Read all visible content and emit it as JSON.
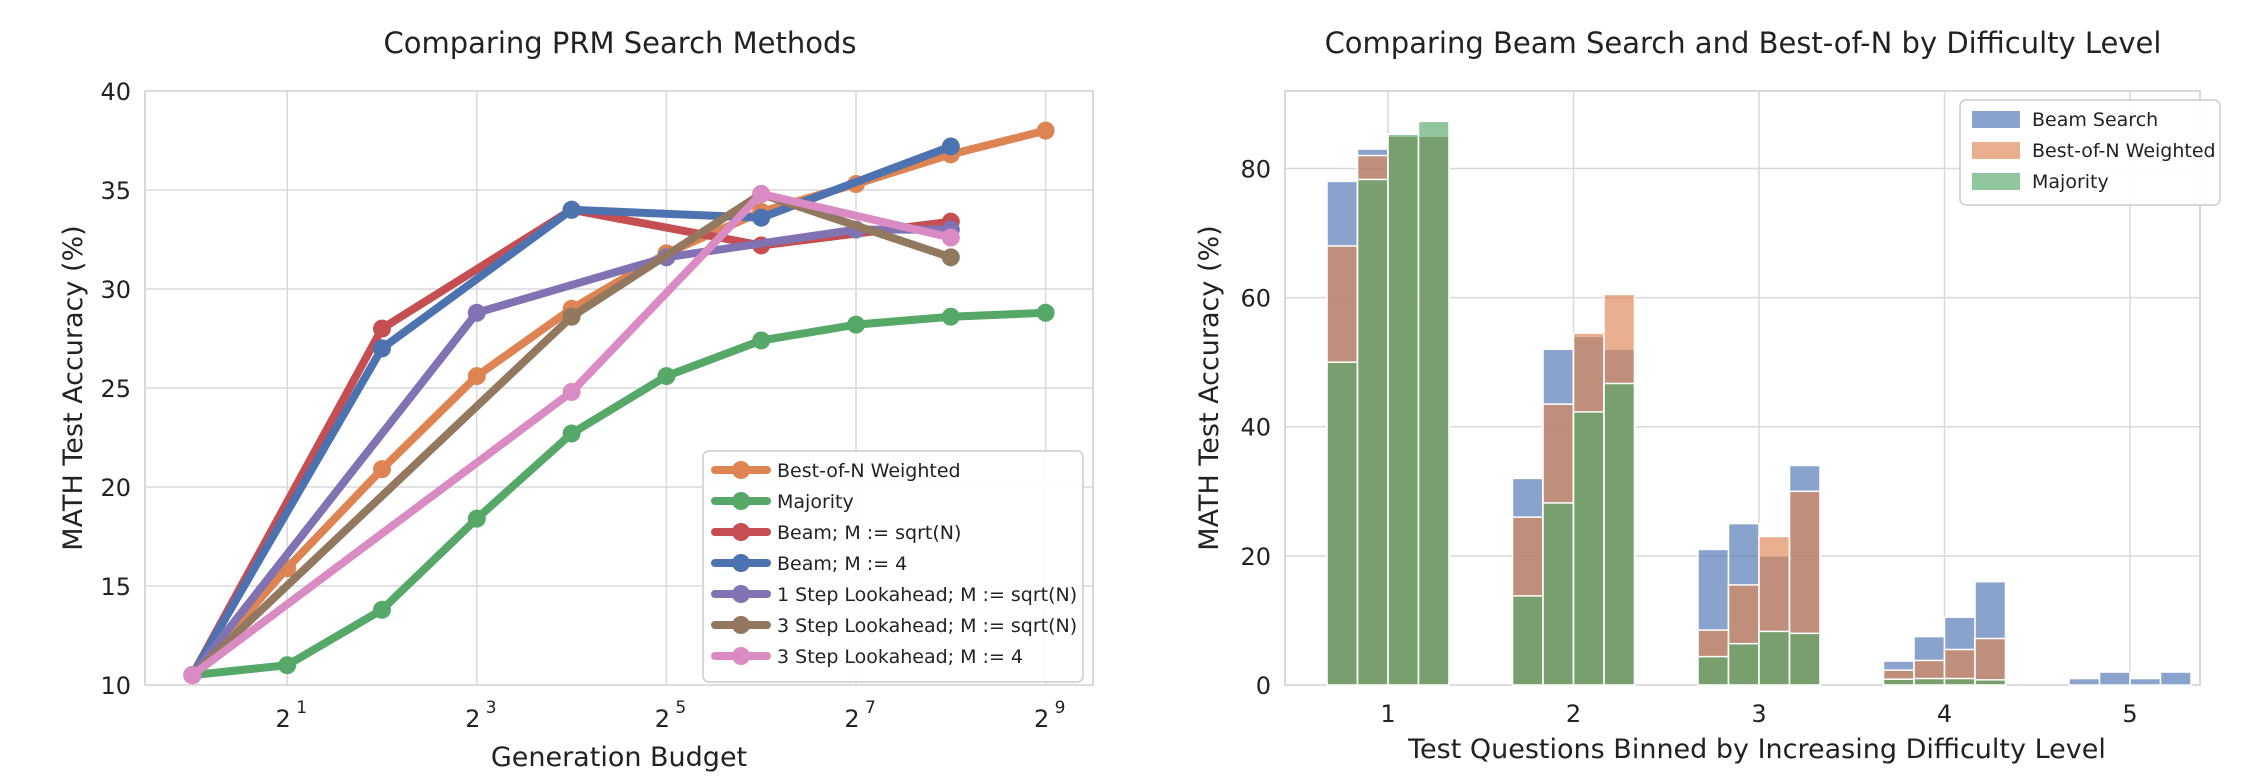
{
  "chart_data": [
    {
      "type": "line",
      "title": "Comparing PRM Search Methods",
      "xlabel": "Generation Budget",
      "ylabel": "MATH Test Accuracy (%)",
      "xscale": "log2",
      "xlim_log2": [
        -0.5,
        9.5
      ],
      "ylim": [
        10,
        40
      ],
      "yticks": [
        10,
        15,
        20,
        25,
        30,
        35,
        40
      ],
      "xticks": [
        {
          "exp": 1,
          "base": "2",
          "sup": "1"
        },
        {
          "exp": 3,
          "base": "2",
          "sup": "3"
        },
        {
          "exp": 5,
          "base": "2",
          "sup": "5"
        },
        {
          "exp": 7,
          "base": "2",
          "sup": "7"
        },
        {
          "exp": 9,
          "base": "2",
          "sup": "9"
        }
      ],
      "legend_position": "bottom-right",
      "series": [
        {
          "name": "Best-of-N Weighted",
          "color": "#dd8452",
          "x_log2": [
            0,
            1,
            2,
            3,
            4,
            5,
            6,
            7,
            8,
            9
          ],
          "values": [
            10.5,
            15.9,
            20.9,
            25.6,
            29.0,
            31.8,
            33.9,
            35.3,
            36.8,
            38.0
          ]
        },
        {
          "name": "Majority",
          "color": "#55a868",
          "x_log2": [
            0,
            1,
            2,
            3,
            4,
            5,
            6,
            7,
            8,
            9
          ],
          "values": [
            10.5,
            11.0,
            13.8,
            18.4,
            22.7,
            25.6,
            27.4,
            28.2,
            28.6,
            28.8
          ]
        },
        {
          "name": "Beam; M := sqrt(N)",
          "color": "#c44e52",
          "x_log2": [
            0,
            2,
            4,
            6,
            8
          ],
          "values": [
            10.5,
            28.0,
            34.0,
            32.2,
            33.4
          ]
        },
        {
          "name": "Beam; M := 4",
          "color": "#4c72b0",
          "x_log2": [
            0,
            2,
            4,
            6,
            8
          ],
          "values": [
            10.5,
            27.0,
            34.0,
            33.6,
            37.2
          ]
        },
        {
          "name": "1 Step Lookahead; M := sqrt(N)",
          "color": "#8172b3",
          "x_log2": [
            0,
            3,
            5,
            7,
            8
          ],
          "values": [
            10.5,
            28.8,
            31.6,
            33.0,
            33.0
          ]
        },
        {
          "name": "3 Step Lookahead; M := sqrt(N)",
          "color": "#937860",
          "x_log2": [
            0,
            4,
            6,
            8
          ],
          "values": [
            10.5,
            28.6,
            34.8,
            31.6
          ]
        },
        {
          "name": "3 Step Lookahead; M := 4",
          "color": "#da8bc3",
          "x_log2": [
            0,
            4,
            6,
            8
          ],
          "values": [
            10.5,
            24.8,
            34.8,
            32.6
          ]
        }
      ]
    },
    {
      "type": "bar",
      "subtype": "overlaid-histogram",
      "title": "Comparing Beam Search and Best-of-N by Difficulty Level",
      "xlabel": "Test Questions Binned by Increasing Difficulty Level",
      "ylabel": "MATH Test Accuracy (%)",
      "categories": [
        "1",
        "2",
        "3",
        "4",
        "5"
      ],
      "bars_per_category": 4,
      "ylim": [
        0,
        92
      ],
      "yticks": [
        0,
        20,
        40,
        60,
        80
      ],
      "legend_position": "top-right",
      "series": [
        {
          "name": "Beam Search",
          "color": "#4c72b0",
          "values": [
            [
              78,
              83,
              85,
              85
            ],
            [
              32,
              52,
              54,
              52
            ],
            [
              21,
              25,
              20,
              34
            ],
            [
              3.7,
              7.5,
              10.5,
              16
            ],
            [
              1,
              2,
              1,
              2
            ]
          ]
        },
        {
          "name": "Best-of-N Weighted",
          "color": "#dd8452",
          "values": [
            [
              68,
              82,
              85,
              85
            ],
            [
              26,
              43.5,
              54.5,
              60.5
            ],
            [
              8.5,
              15.5,
              23,
              30
            ],
            [
              2.3,
              3.8,
              5.5,
              7.2
            ],
            [
              0,
              0,
              0,
              0
            ]
          ]
        },
        {
          "name": "Majority",
          "color": "#55a868",
          "values": [
            [
              50,
              78.3,
              85.3,
              87.3
            ],
            [
              13.8,
              28.2,
              42.3,
              46.7
            ],
            [
              4.4,
              6.4,
              8.3,
              8
            ],
            [
              0.9,
              1,
              1,
              0.8
            ],
            [
              0,
              0,
              0,
              0
            ]
          ]
        }
      ]
    }
  ]
}
